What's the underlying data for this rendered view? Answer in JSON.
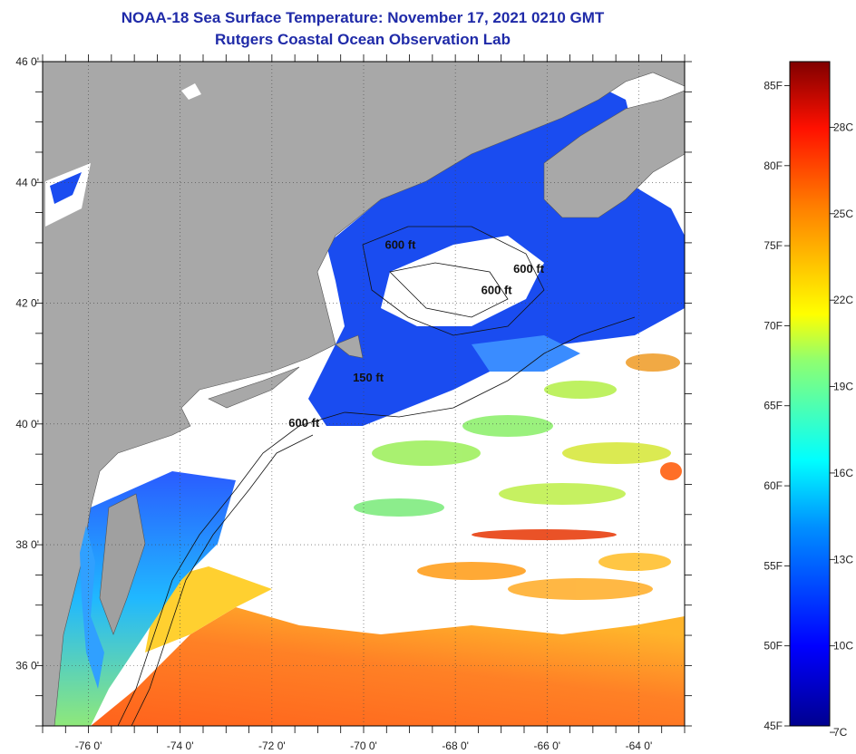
{
  "header": {
    "title": "NOAA-18 Sea Surface Temperature:  November 17, 2021 0210 GMT",
    "subtitle": "Rutgers Coastal Ocean Observation Lab"
  },
  "map": {
    "lon_range": [
      -77,
      -63
    ],
    "lat_range": [
      35,
      46
    ],
    "lon_ticks": [
      {
        "value": -76,
        "label": "-76 0'"
      },
      {
        "value": -74,
        "label": "-74 0'"
      },
      {
        "value": -72,
        "label": "-72 0'"
      },
      {
        "value": -70,
        "label": "-70 0'"
      },
      {
        "value": -68,
        "label": "-68 0'"
      },
      {
        "value": -66,
        "label": "-66 0'"
      },
      {
        "value": -64,
        "label": "-64 0'"
      }
    ],
    "lat_ticks": [
      {
        "value": 46,
        "label": "46 0'"
      },
      {
        "value": 44,
        "label": "44 0'"
      },
      {
        "value": 42,
        "label": "42 0'"
      },
      {
        "value": 40,
        "label": "40 0'"
      },
      {
        "value": 38,
        "label": "38 0'"
      },
      {
        "value": 36,
        "label": "36 0'"
      }
    ],
    "contour_labels": [
      {
        "text": "600 ft",
        "lon": -69.2,
        "lat": 42.9
      },
      {
        "text": "600 ft",
        "lon": -66.4,
        "lat": 42.5
      },
      {
        "text": "600 ft",
        "lon": -67.1,
        "lat": 42.15
      },
      {
        "text": "150 ft",
        "lon": -69.9,
        "lat": 40.7
      },
      {
        "text": "600 ft",
        "lon": -71.3,
        "lat": 39.95
      }
    ]
  },
  "colorbar": {
    "fahrenheit": [
      {
        "value": 85,
        "label": "85F"
      },
      {
        "value": 80,
        "label": "80F"
      },
      {
        "value": 75,
        "label": "75F"
      },
      {
        "value": 70,
        "label": "70F"
      },
      {
        "value": 65,
        "label": "65F"
      },
      {
        "value": 60,
        "label": "60F"
      },
      {
        "value": 55,
        "label": "55F"
      },
      {
        "value": 50,
        "label": "50F"
      },
      {
        "value": 45,
        "label": "45F"
      }
    ],
    "celsius": [
      {
        "value": 28,
        "label": "28C"
      },
      {
        "value": 25,
        "label": "25C"
      },
      {
        "value": 22,
        "label": "22C"
      },
      {
        "value": 19,
        "label": "19C"
      },
      {
        "value": 16,
        "label": "16C"
      },
      {
        "value": 13,
        "label": "13C"
      },
      {
        "value": 10,
        "label": "10C"
      },
      {
        "value": 7,
        "label": "7C"
      }
    ],
    "range_f": [
      45,
      86.5
    ]
  },
  "colors": {
    "land": "#a8a8a8",
    "title": "#1f2aa8",
    "cloud": "#ffffff"
  }
}
